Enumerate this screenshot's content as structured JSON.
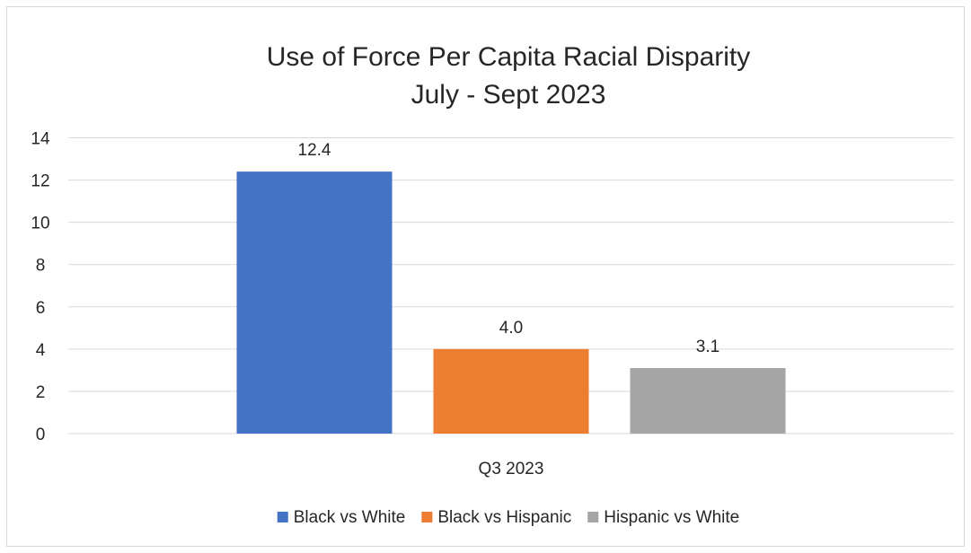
{
  "chart_data": {
    "type": "bar",
    "title": "Use of Force Per Capita Racial Disparity",
    "subtitle": "July - Sept 2023",
    "categories": [
      "Q3 2023"
    ],
    "series": [
      {
        "name": "Black vs White",
        "values": [
          12.4
        ],
        "label": "12.4",
        "color": "#4472c4"
      },
      {
        "name": "Black vs Hispanic",
        "values": [
          4.0
        ],
        "label": "4.0",
        "color": "#ed7d31"
      },
      {
        "name": "Hispanic vs White",
        "values": [
          3.1
        ],
        "label": "3.1",
        "color": "#a5a5a5"
      }
    ],
    "xlabel": "",
    "ylabel": "",
    "ylim": [
      0,
      14
    ],
    "yticks": [
      "0",
      "2",
      "4",
      "6",
      "8",
      "10",
      "12",
      "14"
    ],
    "grid": true,
    "legend_position": "bottom",
    "gridline_color": "#d9d9d9"
  }
}
